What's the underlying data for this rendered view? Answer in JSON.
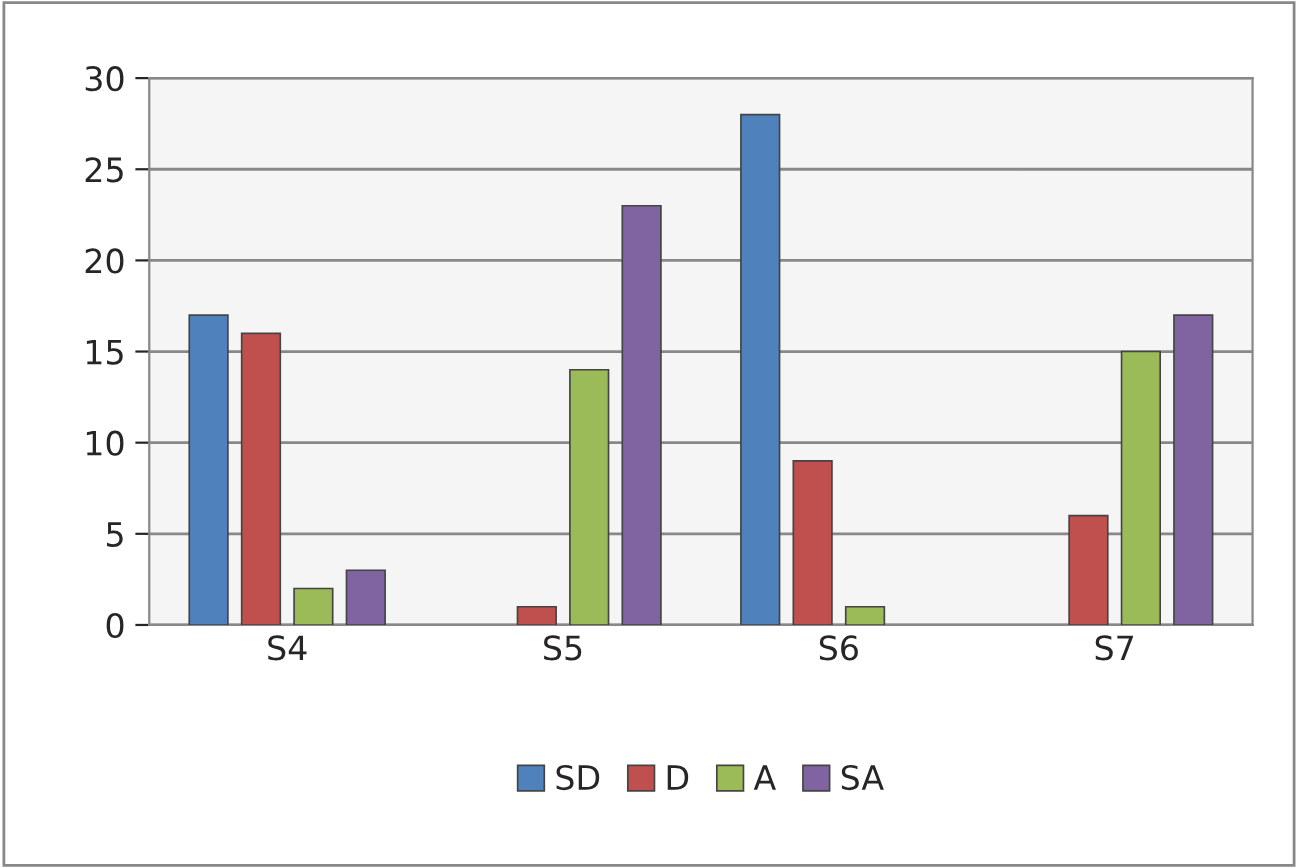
{
  "chart_data": {
    "type": "bar",
    "categories": [
      "S4",
      "S5",
      "S6",
      "S7"
    ],
    "series": [
      {
        "name": "SD",
        "color": "#4f81bd",
        "values": [
          17,
          0,
          28,
          0
        ]
      },
      {
        "name": "D",
        "color": "#c0504d",
        "values": [
          16,
          1,
          9,
          6
        ]
      },
      {
        "name": "A",
        "color": "#9bbb59",
        "values": [
          2,
          14,
          1,
          15
        ]
      },
      {
        "name": "SA",
        "color": "#8064a2",
        "values": [
          3,
          23,
          0,
          17
        ]
      }
    ],
    "ylim": [
      0,
      30
    ],
    "yticks": [
      0,
      5,
      10,
      15,
      20,
      25,
      30
    ],
    "grid": "y",
    "legend": "bottom"
  }
}
